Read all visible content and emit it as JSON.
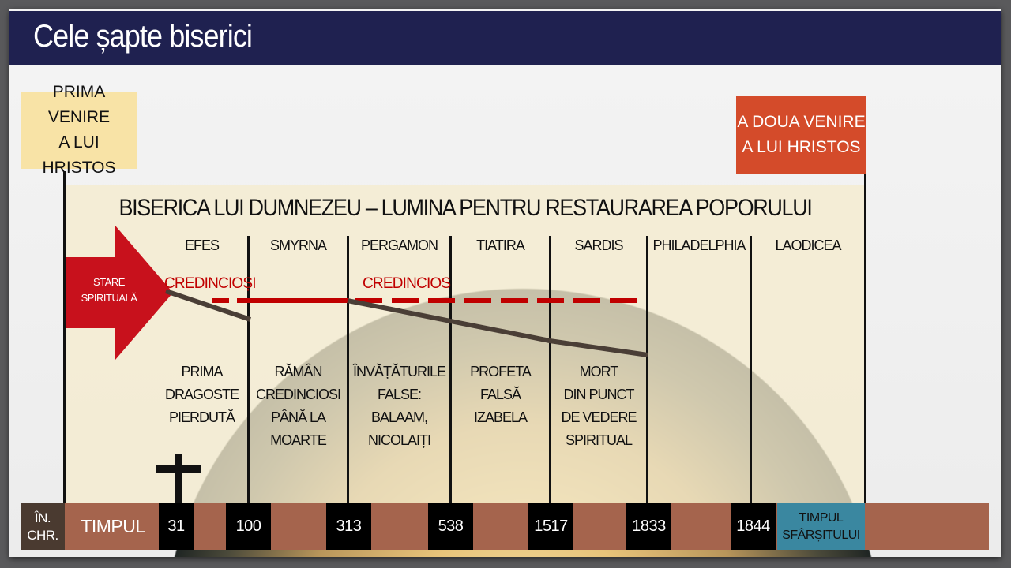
{
  "title": "Cele șapte biserici",
  "first_coming": [
    "PRIMA VENIRE",
    "A LUI HRISTOS"
  ],
  "second_coming": [
    "A DOUA VENIRE",
    "A LUI HRISTOS"
  ],
  "heading": "BISERICA LUI DUMNEZEU – LUMINA PENTRU RESTAURAREA POPORULUI",
  "arrow_label": [
    "STARE",
    "SPIRITUALĂ"
  ],
  "faithful_labels": [
    "CREDINCIOȘI",
    "CREDINCIOS"
  ],
  "churches": [
    {
      "name": "EFES",
      "desc": [
        "PRIMA",
        "DRAGOSTE",
        "PIERDUTĂ"
      ]
    },
    {
      "name": "SMYRNA",
      "desc": [
        "RĂMÂN",
        "CREDINCIOSI",
        "PÂNĂ LA",
        "MOARTE"
      ]
    },
    {
      "name": "PERGAMON",
      "desc": [
        "ÎNVĂȚĂTURILE",
        "FALSE:",
        "BALAAM,",
        "NICOLAIȚI"
      ]
    },
    {
      "name": "TIATIRA",
      "desc": [
        "PROFETA",
        "FALSĂ",
        "IZABELA"
      ]
    },
    {
      "name": "SARDIS",
      "desc": [
        "MORT",
        "DIN PUNCT",
        "DE VEDERE",
        "SPIRITUAL"
      ]
    },
    {
      "name": "PHILADELPHIA",
      "desc": []
    },
    {
      "name": "LAODICEA",
      "desc": []
    }
  ],
  "timeline": {
    "bc": [
      "ÎN.",
      "CHR."
    ],
    "label": "TIMPUL",
    "years": [
      "31",
      "100",
      "313",
      "538",
      "1517",
      "1833",
      "1844"
    ],
    "end": [
      "TIMPUL",
      "SFÂRȘITULUI"
    ]
  },
  "colors": {
    "title_bar": "#1f2150",
    "first_box": "#f8e3a6",
    "second_box": "#d44b2a",
    "arrow": "#c8111c",
    "faithful": "#c00000",
    "timeline": "#a5644d",
    "end_box": "#3a87a0"
  },
  "icons": [
    "cross-icon",
    "arrow-right-icon"
  ]
}
